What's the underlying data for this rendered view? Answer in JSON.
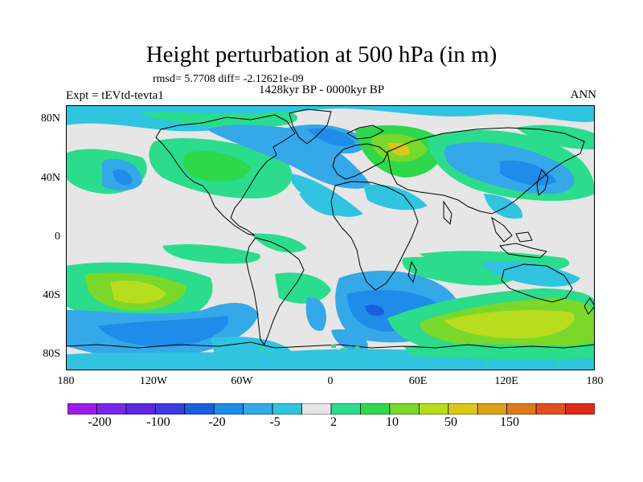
{
  "title": "Height perturbation at 500 hPa (in m)",
  "stats": "rmsd= 5.7708 diff= -2.12621e-09",
  "left_label": "Expt = tEVtd-tevta1",
  "center_label": "1428kyr BP - 0000kyr BP",
  "right_label": "ANN",
  "map": {
    "lon_range": [
      -180,
      180
    ],
    "lat_range": [
      -90,
      90
    ],
    "background_color": "#e6e6e6",
    "y_ticks": [
      "80N",
      "40N",
      "0",
      "40S",
      "80S"
    ],
    "x_ticks": [
      "180",
      "120W",
      "60W",
      "0",
      "60E",
      "120E",
      "180"
    ]
  },
  "colorbar": {
    "colors": [
      "#9d1ce6",
      "#7a28e8",
      "#5a28e0",
      "#3d3ce0",
      "#1a5fe0",
      "#1e8ce8",
      "#34a8e8",
      "#30c4e0",
      "#e6e6e6",
      "#2adc8c",
      "#2ed84a",
      "#7ad82a",
      "#b8dc1e",
      "#dcc81a",
      "#dca01a",
      "#e0781e",
      "#e0501e",
      "#e02a1a"
    ],
    "labels": [
      "-200",
      "-100",
      "-20",
      "-5",
      "2",
      "10",
      "50",
      "150"
    ]
  }
}
